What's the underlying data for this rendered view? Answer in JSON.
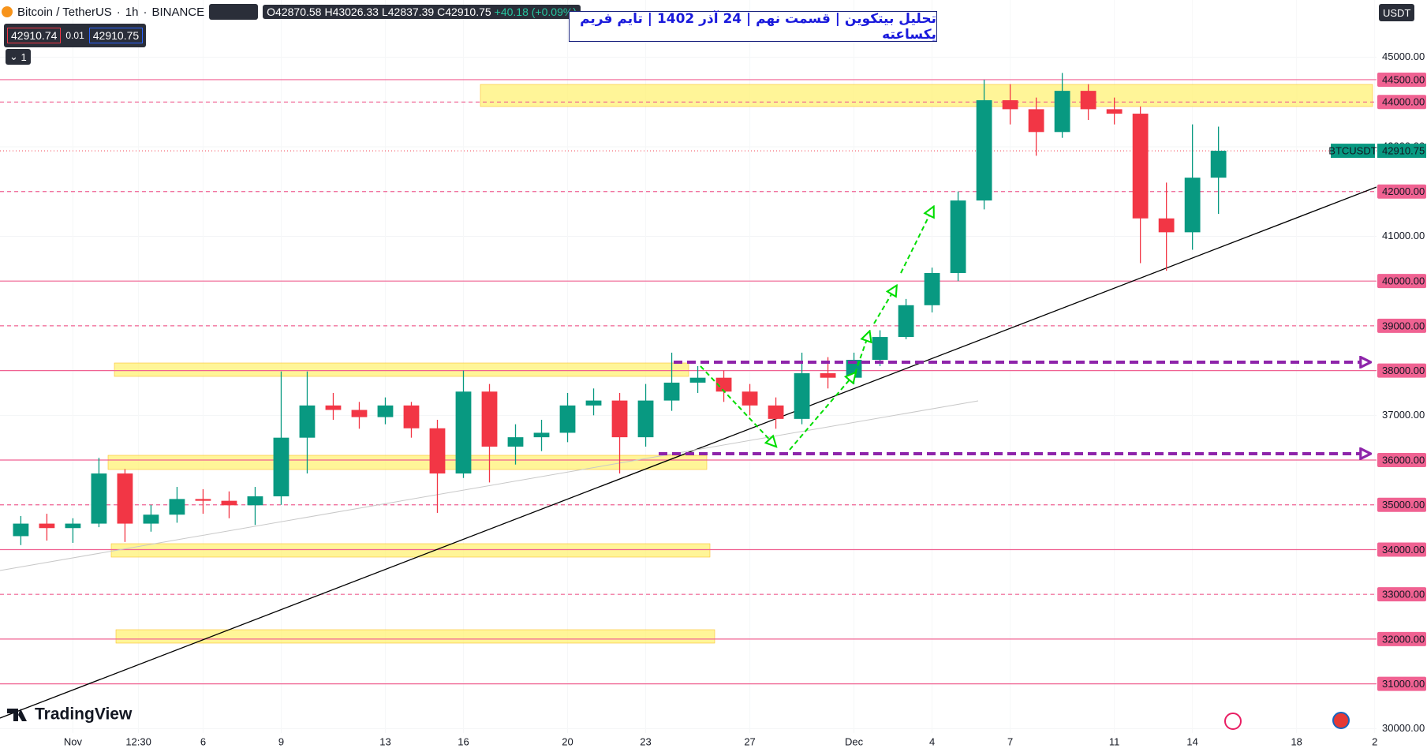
{
  "header": {
    "symbol": "Bitcoin / TetherUS",
    "interval": "1h",
    "exchange": "BINANCE",
    "ohlc": [
      "O42870.58",
      "H43026.33",
      "L42837.39",
      "C42910.75",
      "+40.18 (+0.09%)"
    ],
    "bid": "42910.74",
    "spread": "0.01",
    "ask": "42910.75",
    "indicators": "1",
    "title": "تحلیل بیتکوین | قسمت نهم | 24 آذر 1402 | تایم فریم یکساعته",
    "currency": "USDT",
    "brand": "TradingView"
  },
  "chart_data": {
    "type": "candlestick",
    "up_color": "#089981",
    "down_color": "#f23645",
    "xlim": [
      -2.8,
      50.07
    ],
    "ylim": [
      29900,
      46280
    ],
    "xticks": [
      {
        "value": 0,
        "label": "Nov"
      },
      {
        "value": 2.52,
        "label": "12:30"
      },
      {
        "value": 5,
        "label": "6"
      },
      {
        "value": 8,
        "label": "9"
      },
      {
        "value": 12,
        "label": "13"
      },
      {
        "value": 15,
        "label": "16"
      },
      {
        "value": 19,
        "label": "20"
      },
      {
        "value": 22,
        "label": "23"
      },
      {
        "value": 26,
        "label": "27"
      },
      {
        "value": 30,
        "label": "Dec"
      },
      {
        "value": 33,
        "label": "4"
      },
      {
        "value": 36,
        "label": "7"
      },
      {
        "value": 40,
        "label": "11"
      },
      {
        "value": 43,
        "label": "14"
      },
      {
        "value": 47,
        "label": "18"
      },
      {
        "value": 50,
        "label": "2"
      }
    ],
    "yticks": [
      {
        "value": 30000,
        "label": "30000.00"
      },
      {
        "value": 31000,
        "label": "31000.00"
      },
      {
        "value": 32000,
        "label": "32000.00"
      },
      {
        "value": 33000,
        "label": "33000.00"
      },
      {
        "value": 34000,
        "label": "34000.00"
      },
      {
        "value": 35000,
        "label": "35000.00"
      },
      {
        "value": 36000,
        "label": "36000.00"
      },
      {
        "value": 37000,
        "label": "37000.00"
      },
      {
        "value": 38000,
        "label": "38000.00"
      },
      {
        "value": 39000,
        "label": "39000.00"
      },
      {
        "value": 40000,
        "label": "40000.00"
      },
      {
        "value": 41000,
        "label": "41000.00"
      },
      {
        "value": 42000,
        "label": "42000.00"
      },
      {
        "value": 43000,
        "label": "43000.00"
      },
      {
        "value": 44000,
        "label": "44000.00"
      },
      {
        "value": 45000,
        "label": "45000.00"
      }
    ],
    "level_color": "#f06292",
    "levels": [
      {
        "value": 44500,
        "label": "44500.00",
        "style": "solid"
      },
      {
        "value": 44000,
        "label": "44000.00",
        "style": "dashed"
      },
      {
        "value": 42000,
        "label": "42000.00",
        "style": "dashed"
      },
      {
        "value": 40000,
        "label": "40000.00",
        "style": "solid"
      },
      {
        "value": 39000,
        "label": "39000.00",
        "style": "dashed"
      },
      {
        "value": 38000,
        "label": "38000.00",
        "style": "solid"
      },
      {
        "value": 36000,
        "label": "36000.00",
        "style": "solid"
      },
      {
        "value": 35000,
        "label": "35000.00",
        "style": "dashed"
      },
      {
        "value": 34000,
        "label": "34000.00",
        "style": "solid"
      },
      {
        "value": 33000,
        "label": "33000.00",
        "style": "dashed"
      },
      {
        "value": 32000,
        "label": "32000.00",
        "style": "solid"
      },
      {
        "value": 31000,
        "label": "31000.00",
        "style": "solid"
      }
    ],
    "last_price": 42910.75,
    "series": [
      {
        "name": "BTCUSDT",
        "x": [
          -2,
          -1,
          0,
          1,
          2,
          3,
          4,
          5,
          6,
          7,
          8,
          9,
          10,
          11,
          12,
          13,
          14,
          15,
          16,
          17,
          18,
          19,
          20,
          21,
          22,
          23,
          24,
          25,
          26,
          27,
          28,
          29,
          30,
          31,
          32,
          33,
          34,
          35,
          36,
          37,
          38,
          39,
          40,
          41,
          42,
          43,
          44
        ],
        "open": [
          34300,
          34580,
          34480,
          34580,
          35700,
          34580,
          34780,
          35130,
          35090,
          34990,
          35190,
          36500,
          37220,
          37120,
          36960,
          37220,
          36710,
          35700,
          37530,
          36300,
          36510,
          36610,
          37220,
          37330,
          36510,
          37330,
          37730,
          37840,
          37530,
          37220,
          36920,
          37940,
          37840,
          38240,
          38750,
          39460,
          40180,
          41800,
          44040,
          43840,
          43330,
          44250,
          43840,
          43740,
          41400,
          41090,
          42310
        ],
        "high": [
          34750,
          34800,
          34700,
          36050,
          35800,
          35000,
          35400,
          35350,
          35300,
          35400,
          37980,
          37980,
          37500,
          37300,
          37400,
          37300,
          36900,
          38000,
          37700,
          36800,
          36900,
          37500,
          37600,
          37500,
          37700,
          38400,
          38100,
          38000,
          37700,
          37400,
          38400,
          38300,
          38400,
          38900,
          39600,
          40300,
          42000,
          44500,
          44400,
          44100,
          44650,
          44400,
          44100,
          43900,
          42200,
          43500,
          43450
        ],
        "low": [
          34100,
          34200,
          34150,
          34500,
          34170,
          34400,
          34600,
          34800,
          34700,
          34550,
          35000,
          35700,
          36900,
          36700,
          36800,
          36500,
          34820,
          35600,
          35500,
          35900,
          36200,
          36400,
          37000,
          35700,
          36300,
          37100,
          37500,
          37300,
          37000,
          36700,
          36800,
          37600,
          37700,
          38100,
          38700,
          39300,
          40000,
          41600,
          43500,
          42800,
          43200,
          43600,
          43500,
          40400,
          40230,
          40700,
          41500
        ],
        "close": [
          34580,
          34480,
          34580,
          35700,
          34580,
          34780,
          35130,
          35090,
          34990,
          35190,
          36500,
          37220,
          37120,
          36960,
          37220,
          36710,
          35700,
          37530,
          36300,
          36510,
          36610,
          37220,
          37330,
          36510,
          37330,
          37730,
          37840,
          37530,
          37220,
          36920,
          37940,
          37840,
          38240,
          38750,
          39460,
          40180,
          41800,
          44040,
          43840,
          43330,
          44250,
          43840,
          43740,
          41400,
          41090,
          42310,
          42910.75
        ]
      }
    ]
  }
}
